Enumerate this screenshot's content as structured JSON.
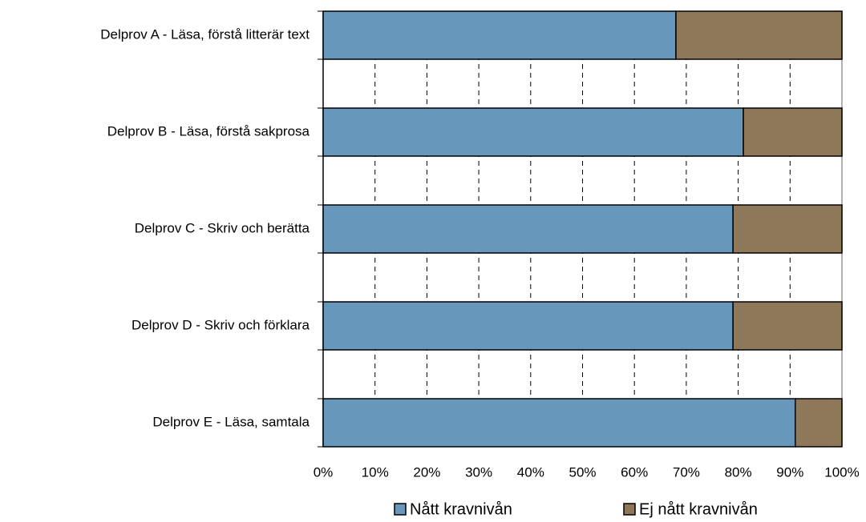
{
  "chart_data": {
    "type": "stacked-barh",
    "categories": [
      "Delprov A - Läsa, förstå litterär text",
      "Delprov B - Läsa, förstå sakprosa",
      "Delprov C - Skriv och berätta",
      "Delprov D  - Skriv och förklara",
      "Delprov E - Läsa, samtala"
    ],
    "series": [
      {
        "name": "Nått kravnivån",
        "color": "#6797bb",
        "values": [
          68,
          81,
          79,
          79,
          91
        ]
      },
      {
        "name": "Ej nått kravnivån",
        "color": "#8f785a",
        "values": [
          32,
          19,
          21,
          21,
          9
        ]
      }
    ],
    "xlim": [
      0,
      100
    ],
    "xticks": [
      {
        "value": 0,
        "label": "0%"
      },
      {
        "value": 10,
        "label": "10%"
      },
      {
        "value": 20,
        "label": "20%"
      },
      {
        "value": 30,
        "label": "30%"
      },
      {
        "value": 40,
        "label": "40%"
      },
      {
        "value": 50,
        "label": "50%"
      },
      {
        "value": 60,
        "label": "60%"
      },
      {
        "value": 70,
        "label": "70%"
      },
      {
        "value": 80,
        "label": "80%"
      },
      {
        "value": 90,
        "label": "90%"
      },
      {
        "value": 100,
        "label": "100%"
      }
    ],
    "grid": true,
    "legend": "bottom"
  }
}
